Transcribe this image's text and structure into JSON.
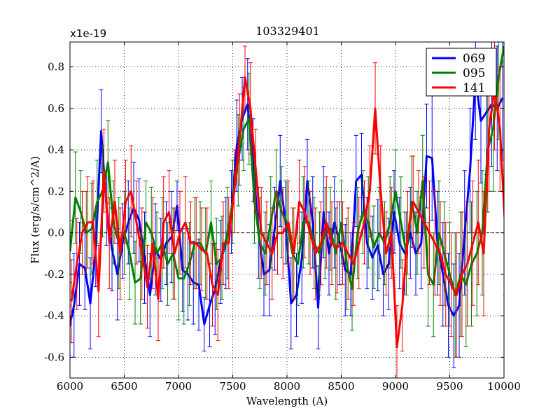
{
  "chart_data": {
    "type": "line",
    "title": "103329401",
    "xlabel": "Wavelength (A)",
    "ylabel": "Flux (erg/s/cm^2/A)",
    "y_scale_label": "x1e-19",
    "xlim": [
      6000,
      10000
    ],
    "ylim": [
      -0.7,
      0.92
    ],
    "xticks": [
      6000,
      6500,
      7000,
      7500,
      8000,
      8500,
      9000,
      9500,
      10000
    ],
    "yticks": [
      -0.6,
      -0.4,
      -0.2,
      0.0,
      0.2,
      0.4,
      0.6,
      0.8
    ],
    "ytick_labels": [
      "-0.6",
      "-0.4",
      "-0.2",
      "0.0",
      "0.2",
      "0.4",
      "0.6",
      "0.8"
    ],
    "grid": true,
    "legend_position": "top-right",
    "series": [
      {
        "name": "069",
        "color": "#0000ff",
        "x": [
          6000,
          6050,
          6100,
          6150,
          6200,
          6250,
          6300,
          6350,
          6400,
          6450,
          6500,
          6550,
          6600,
          6650,
          6700,
          6750,
          6800,
          6850,
          6900,
          6950,
          7000,
          7050,
          7100,
          7150,
          7200,
          7250,
          7300,
          7350,
          7400,
          7450,
          7500,
          7550,
          7600,
          7650,
          7700,
          7750,
          7800,
          7850,
          7900,
          7950,
          8000,
          8050,
          8100,
          8150,
          8200,
          8250,
          8300,
          8350,
          8400,
          8450,
          8500,
          8550,
          8600,
          8650,
          8700,
          8750,
          8800,
          8850,
          8900,
          8950,
          9000,
          9050,
          9100,
          9150,
          9200,
          9250,
          9300,
          9350,
          9400,
          9450,
          9500,
          9550,
          9600,
          9650,
          9700,
          9750,
          9800,
          9850,
          9900,
          9950,
          10000
        ],
        "y": [
          -0.47,
          -0.35,
          -0.15,
          -0.17,
          -0.34,
          -0.08,
          0.49,
          0.12,
          -0.08,
          -0.2,
          -0.04,
          0.05,
          0.12,
          0.06,
          -0.12,
          -0.3,
          -0.08,
          -0.13,
          -0.05,
          -0.02,
          0.13,
          -0.18,
          -0.2,
          -0.24,
          -0.25,
          -0.44,
          -0.35,
          -0.27,
          -0.14,
          -0.05,
          0.1,
          0.42,
          0.55,
          0.62,
          0.35,
          0.0,
          -0.2,
          -0.18,
          0.02,
          0.25,
          0.05,
          -0.34,
          -0.3,
          -0.12,
          0.25,
          0.05,
          -0.36,
          0.1,
          -0.1,
          0.05,
          -0.05,
          -0.18,
          -0.2,
          0.25,
          0.28,
          -0.05,
          -0.12,
          -0.06,
          -0.2,
          -0.15,
          0.1,
          -0.05,
          -0.1,
          0.0,
          -0.1,
          -0.05,
          0.37,
          0.36,
          -0.05,
          -0.2,
          -0.35,
          -0.4,
          -0.35,
          0.0,
          0.3,
          0.75,
          0.54,
          0.58,
          0.62,
          0.6,
          0.65
        ],
        "err": [
          0.12,
          0.25,
          0.2,
          0.2,
          0.22,
          0.18,
          0.2,
          0.18,
          0.2,
          0.22,
          0.18,
          0.2,
          0.22,
          0.2,
          0.22,
          0.2,
          0.22,
          0.2,
          0.2,
          0.22,
          0.12,
          0.2,
          0.22,
          0.2,
          0.22,
          0.13,
          0.2,
          0.22,
          0.2,
          0.22,
          0.2,
          0.22,
          0.2,
          0.22,
          0.2,
          0.22,
          0.2,
          0.22,
          0.2,
          0.22,
          0.2,
          0.22,
          0.2,
          0.22,
          0.2,
          0.22,
          0.2,
          0.22,
          0.2,
          0.22,
          0.2,
          0.22,
          0.2,
          0.22,
          0.2,
          0.22,
          0.2,
          0.22,
          0.2,
          0.22,
          0.2,
          0.22,
          0.2,
          0.22,
          0.2,
          0.22,
          0.25,
          0.3,
          0.25,
          0.25,
          0.25,
          0.25,
          0.25,
          0.3,
          0.3,
          0.3,
          0.3,
          0.3,
          0.3,
          0.3,
          0.3
        ]
      },
      {
        "name": "095",
        "color": "#008000",
        "x": [
          6000,
          6050,
          6100,
          6150,
          6200,
          6250,
          6300,
          6350,
          6400,
          6450,
          6500,
          6550,
          6600,
          6650,
          6700,
          6750,
          6800,
          6850,
          6900,
          6950,
          7000,
          7050,
          7100,
          7150,
          7200,
          7250,
          7300,
          7350,
          7400,
          7450,
          7500,
          7550,
          7600,
          7650,
          7700,
          7750,
          7800,
          7850,
          7900,
          7950,
          8000,
          8050,
          8100,
          8150,
          8200,
          8250,
          8300,
          8350,
          8400,
          8450,
          8500,
          8550,
          8600,
          8650,
          8700,
          8750,
          8800,
          8850,
          8900,
          8950,
          9000,
          9050,
          9100,
          9150,
          9200,
          9250,
          9300,
          9350,
          9400,
          9450,
          9500,
          9550,
          9600,
          9650,
          9700,
          9750,
          9800,
          9850,
          9900,
          9950,
          10000
        ],
        "y": [
          -0.09,
          0.17,
          0.1,
          0.0,
          0.02,
          0.15,
          0.2,
          0.34,
          0.05,
          -0.05,
          0.0,
          -0.1,
          -0.24,
          -0.22,
          0.05,
          0.0,
          -0.1,
          -0.05,
          -0.15,
          -0.1,
          -0.22,
          -0.22,
          -0.15,
          -0.05,
          -0.05,
          -0.1,
          0.05,
          -0.15,
          -0.12,
          0.0,
          0.15,
          0.35,
          0.5,
          0.55,
          0.15,
          -0.05,
          -0.1,
          0.05,
          0.2,
          0.1,
          0.05,
          -0.1,
          -0.15,
          0.05,
          0.05,
          -0.05,
          -0.1,
          0.0,
          0.02,
          -0.1,
          0.05,
          -0.15,
          -0.27,
          0.0,
          0.1,
          0.05,
          -0.07,
          0.0,
          -0.05,
          0.05,
          0.2,
          0.05,
          -0.1,
          0.15,
          0.0,
          0.25,
          -0.2,
          -0.25,
          0.0,
          -0.1,
          -0.2,
          -0.3,
          -0.2,
          -0.25,
          -0.15,
          -0.1,
          0.0,
          0.4,
          0.5,
          0.75,
          0.9
        ],
        "err": [
          0.15,
          0.22,
          0.2,
          0.2,
          0.22,
          0.2,
          0.22,
          0.2,
          0.2,
          0.22,
          0.2,
          0.22,
          0.2,
          0.22,
          0.2,
          0.22,
          0.2,
          0.22,
          0.2,
          0.22,
          0.2,
          0.22,
          0.2,
          0.22,
          0.2,
          0.22,
          0.2,
          0.22,
          0.2,
          0.22,
          0.2,
          0.22,
          0.2,
          0.22,
          0.2,
          0.22,
          0.2,
          0.22,
          0.2,
          0.22,
          0.2,
          0.22,
          0.2,
          0.22,
          0.2,
          0.22,
          0.2,
          0.22,
          0.2,
          0.22,
          0.2,
          0.22,
          0.2,
          0.22,
          0.2,
          0.22,
          0.2,
          0.22,
          0.2,
          0.22,
          0.2,
          0.22,
          0.2,
          0.22,
          0.2,
          0.22,
          0.25,
          0.25,
          0.25,
          0.25,
          0.25,
          0.3,
          0.3,
          0.3,
          0.3,
          0.3,
          0.3,
          0.3,
          0.3,
          0.3,
          0.3
        ]
      },
      {
        "name": "141",
        "color": "#ff0000",
        "x": [
          6000,
          6050,
          6100,
          6150,
          6200,
          6250,
          6300,
          6350,
          6400,
          6450,
          6500,
          6550,
          6600,
          6650,
          6700,
          6750,
          6800,
          6850,
          6900,
          6950,
          7000,
          7050,
          7100,
          7150,
          7200,
          7250,
          7300,
          7350,
          7400,
          7450,
          7500,
          7550,
          7600,
          7650,
          7700,
          7750,
          7800,
          7850,
          7900,
          7950,
          8000,
          8050,
          8100,
          8150,
          8200,
          8250,
          8300,
          8350,
          8400,
          8450,
          8500,
          8550,
          8600,
          8650,
          8700,
          8750,
          8800,
          8850,
          8900,
          8950,
          9000,
          9050,
          9100,
          9150,
          9200,
          9250,
          9300,
          9350,
          9400,
          9450,
          9500,
          9550,
          9600,
          9650,
          9700,
          9750,
          9800,
          9850,
          9900,
          9950,
          10000
        ],
        "y": [
          -0.33,
          -0.15,
          0.0,
          0.05,
          0.05,
          -0.28,
          0.3,
          -0.05,
          0.15,
          -0.1,
          0.15,
          0.2,
          0.05,
          -0.1,
          -0.26,
          -0.05,
          -0.32,
          0.05,
          0.1,
          -0.1,
          0.0,
          0.05,
          -0.05,
          -0.05,
          -0.08,
          -0.1,
          -0.25,
          -0.3,
          -0.05,
          -0.05,
          0.2,
          0.45,
          0.75,
          0.6,
          0.3,
          0.0,
          -0.05,
          -0.1,
          0.0,
          0.0,
          0.05,
          -0.1,
          0.15,
          0.1,
          0.0,
          -0.1,
          -0.05,
          0.05,
          -0.05,
          -0.07,
          -0.05,
          -0.1,
          -0.15,
          -0.05,
          0.05,
          0.2,
          0.6,
          0.2,
          -0.1,
          0.0,
          -0.55,
          -0.35,
          0.0,
          0.15,
          0.1,
          0.05,
          0.0,
          -0.05,
          -0.1,
          -0.2,
          -0.25,
          -0.3,
          -0.2,
          -0.15,
          -0.05,
          0.05,
          -0.1,
          0.5,
          0.7,
          0.5,
          0.0
        ],
        "err": [
          0.2,
          0.22,
          0.2,
          0.22,
          0.2,
          0.22,
          0.2,
          0.22,
          0.2,
          0.22,
          0.2,
          0.22,
          0.2,
          0.22,
          0.2,
          0.22,
          0.2,
          0.22,
          0.2,
          0.22,
          0.2,
          0.22,
          0.2,
          0.22,
          0.2,
          0.22,
          0.2,
          0.22,
          0.2,
          0.22,
          0.2,
          0.22,
          0.15,
          0.22,
          0.2,
          0.22,
          0.2,
          0.22,
          0.2,
          0.22,
          0.2,
          0.22,
          0.2,
          0.22,
          0.2,
          0.22,
          0.2,
          0.22,
          0.2,
          0.22,
          0.2,
          0.22,
          0.2,
          0.22,
          0.2,
          0.22,
          0.22,
          0.22,
          0.2,
          0.22,
          0.2,
          0.22,
          0.2,
          0.22,
          0.2,
          0.22,
          0.25,
          0.25,
          0.25,
          0.25,
          0.25,
          0.3,
          0.3,
          0.3,
          0.3,
          0.3,
          0.3,
          0.3,
          0.3,
          0.3,
          0.3
        ]
      }
    ]
  }
}
